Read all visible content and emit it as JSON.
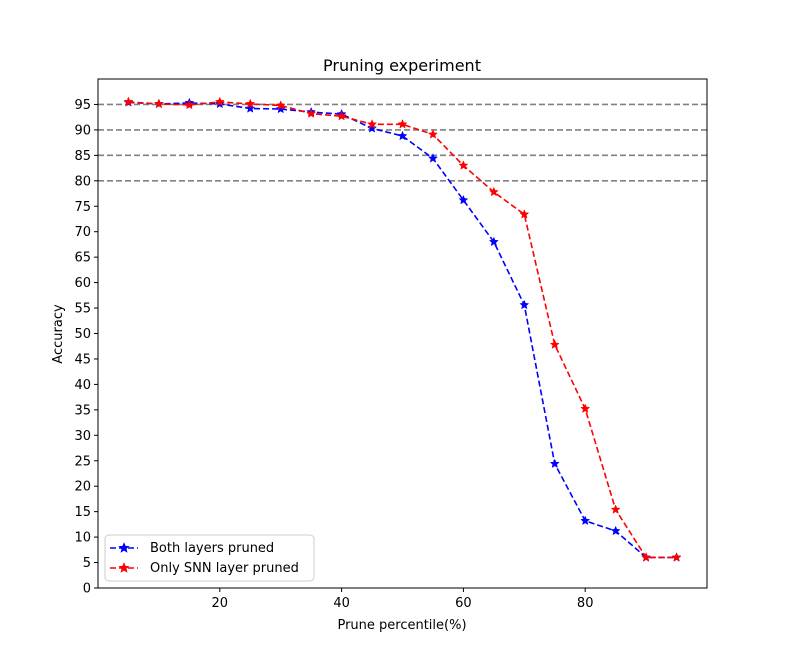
{
  "chart_data": {
    "type": "line",
    "title": "Pruning experiment",
    "xlabel": "Prune percentile(%)",
    "ylabel": "Accuracy",
    "xlim": [
      0,
      100
    ],
    "ylim": [
      0,
      100
    ],
    "xticks": [
      20,
      40,
      60,
      80
    ],
    "yticks": [
      0,
      5,
      10,
      15,
      20,
      25,
      30,
      35,
      40,
      45,
      50,
      55,
      60,
      65,
      70,
      75,
      80,
      85,
      90,
      95
    ],
    "reference_lines": [
      95,
      90,
      85,
      80
    ],
    "reference_line_color": "#808080",
    "x": [
      5,
      10,
      15,
      20,
      25,
      30,
      35,
      40,
      45,
      50,
      55,
      60,
      65,
      70,
      75,
      80,
      85,
      90,
      95
    ],
    "series": [
      {
        "name": "Both layers pruned",
        "color": "#0000ff",
        "values": [
          95.4,
          95.1,
          95.3,
          95.1,
          94.2,
          94.1,
          93.5,
          93.1,
          90.3,
          88.8,
          84.4,
          76.2,
          68.0,
          55.6,
          24.4,
          13.2,
          11.2,
          6.0,
          6.0
        ]
      },
      {
        "name": "Only SNN layer pruned",
        "color": "#ff0000",
        "values": [
          95.5,
          95.1,
          94.9,
          95.5,
          95.1,
          94.8,
          93.2,
          92.7,
          91.1,
          91.1,
          89.1,
          83.0,
          77.8,
          73.4,
          47.8,
          35.2,
          15.4,
          6.0,
          6.0
        ]
      }
    ],
    "legend_position": "lower-left"
  }
}
